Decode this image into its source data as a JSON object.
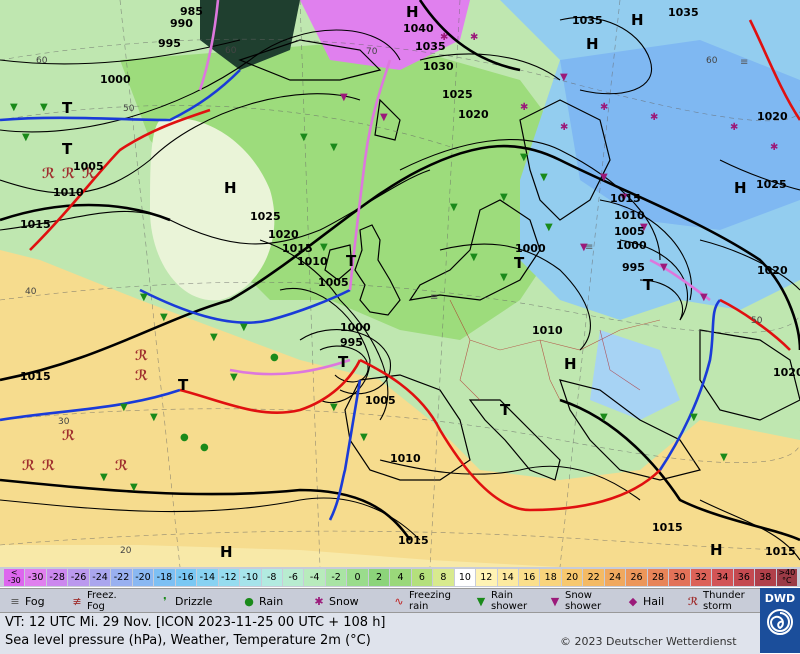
{
  "map": {
    "isobars": [
      "985",
      "990",
      "995",
      "1000",
      "1005",
      "1010",
      "1015",
      "1020",
      "1025",
      "1030",
      "1035",
      "1040",
      "995",
      "1000",
      "1005",
      "1010",
      "1015",
      "1020",
      "1025",
      "1010",
      "1015",
      "1020",
      "1025",
      "1035",
      "1035",
      "1015",
      "1005",
      "1000",
      "995",
      "1010",
      "1005",
      "1005",
      "1010",
      "1015",
      "1020",
      "1025",
      "1015",
      "1020",
      "1025",
      "1020"
    ],
    "pressure_centers": [
      "H",
      "H",
      "H",
      "H",
      "H",
      "H",
      "H",
      "T",
      "T",
      "T",
      "T",
      "T",
      "T",
      "H",
      "H",
      "H"
    ],
    "lat_labels": [
      "60",
      "50",
      "40",
      "30",
      "20",
      "70",
      "60",
      "50",
      "60"
    ],
    "colors": {
      "front_cold": "#1a3bd8",
      "front_warm": "#e01010",
      "front_occluded": "#dd77dd",
      "isobar": "#000000"
    }
  },
  "scale": {
    "values": [
      "<\n-30",
      "-30",
      "-28",
      "-26",
      "-24",
      "-22",
      "-20",
      "-18",
      "-16",
      "-14",
      "-12",
      "-10",
      "-8",
      "-6",
      "-4",
      "-2",
      "0",
      "2",
      "4",
      "6",
      "8",
      "10",
      "12",
      "14",
      "16",
      "18",
      "20",
      "22",
      "24",
      "26",
      "28",
      "30",
      "32",
      "34",
      "36",
      "38",
      ">40\n°C"
    ],
    "colors": [
      "#dd66ee",
      "#e080ee",
      "#cc88ee",
      "#bb99ee",
      "#aaa6ee",
      "#99b0f0",
      "#8ab8f2",
      "#7dc0f4",
      "#7ac8f4",
      "#88d2f2",
      "#96dcef",
      "#a6e4ea",
      "#b2ebe0",
      "#b8ecd0",
      "#b8ebbc",
      "#a9e4a4",
      "#9adc8c",
      "#8cd47a",
      "#9ad87a",
      "#b4e07c",
      "#d8ea8e",
      "#ffffff",
      "#fff3b4",
      "#fdeaa0",
      "#fbdf8c",
      "#f9d47c",
      "#f7c86e",
      "#f4ba64",
      "#f0a85e",
      "#ec965a",
      "#e88458",
      "#e27258",
      "#dc6258",
      "#d25456",
      "#c44a50",
      "#b0404a",
      "#9a3a46"
    ]
  },
  "legend": {
    "fog": "Fog",
    "freezing_fog": "Freez.\nFog",
    "drizzle": "Drizzle",
    "rain": "Rain",
    "snow": "Snow",
    "freezing_rain": "Freezing\nrain",
    "rain_shower": "Rain\nshower",
    "snow_shower": "Snow\nshower",
    "hail": "Hail",
    "thunderstorm": "Thunder\nstorm"
  },
  "footer": {
    "valid_time": "VT: 12 UTC Mi.  29 Nov. [ICON 2023-11-25  00 UTC + 108 h]",
    "parameters": "Sea level pressure (hPa), Weather, Temperature 2m (°C)",
    "copyright": "© 2023 Deutscher Wetterdienst",
    "brand": "DWD"
  }
}
